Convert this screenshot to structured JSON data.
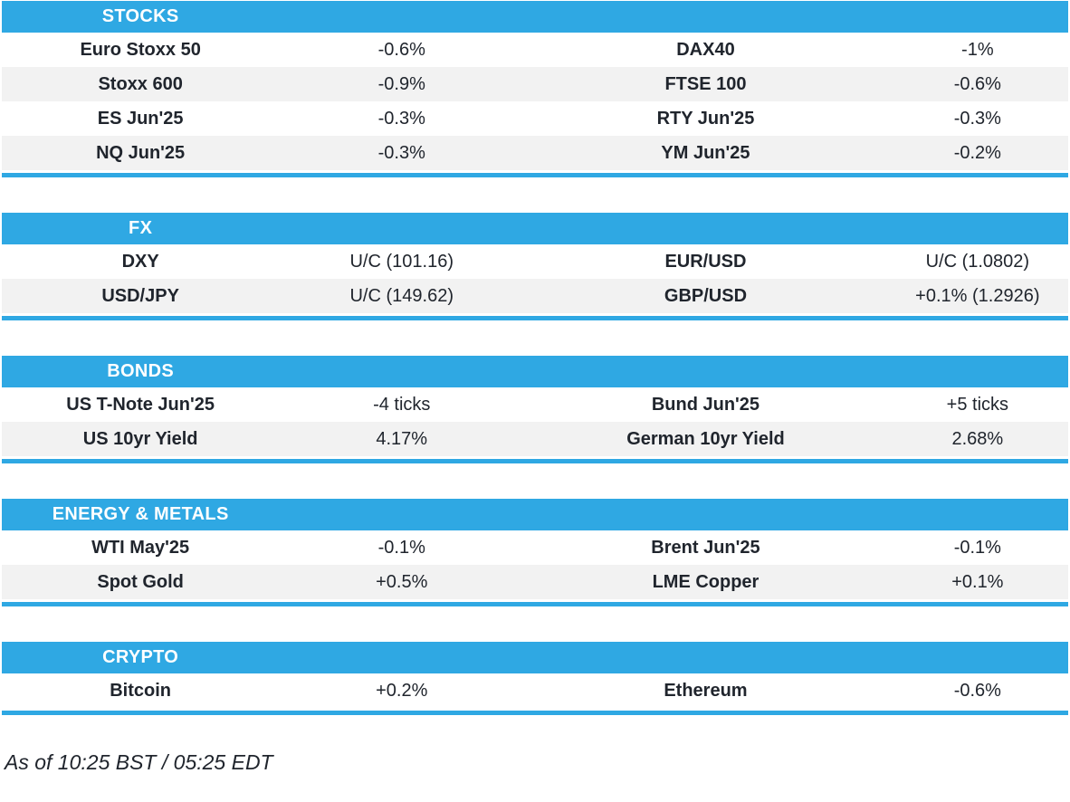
{
  "colors": {
    "accent": "#2fa8e3",
    "row_alt": "#f2f2f2",
    "text": "#20252d",
    "header_text": "#ffffff"
  },
  "chart_data": [
    {
      "type": "table",
      "title": "STOCKS",
      "rows": [
        [
          "Euro Stoxx 50",
          "-0.6%",
          "DAX40",
          "-1%"
        ],
        [
          "Stoxx 600",
          "-0.9%",
          "FTSE 100",
          "-0.6%"
        ],
        [
          "ES Jun'25",
          "-0.3%",
          "RTY Jun'25",
          "-0.3%"
        ],
        [
          "NQ Jun'25",
          "-0.3%",
          "YM Jun'25",
          "-0.2%"
        ]
      ]
    },
    {
      "type": "table",
      "title": "FX",
      "rows": [
        [
          "DXY",
          "U/C (101.16)",
          "EUR/USD",
          "U/C (1.0802)"
        ],
        [
          "USD/JPY",
          "U/C (149.62)",
          "GBP/USD",
          "+0.1% (1.2926)"
        ]
      ]
    },
    {
      "type": "table",
      "title": "BONDS",
      "rows": [
        [
          "US T-Note Jun'25",
          "-4 ticks",
          "Bund Jun'25",
          "+5 ticks"
        ],
        [
          "US 10yr Yield",
          "4.17%",
          "German 10yr Yield",
          "2.68%"
        ]
      ]
    },
    {
      "type": "table",
      "title": "ENERGY & METALS",
      "rows": [
        [
          "WTI May'25",
          "-0.1%",
          "Brent Jun'25",
          "-0.1%"
        ],
        [
          "Spot Gold",
          "+0.5%",
          "LME Copper",
          "+0.1%"
        ]
      ]
    },
    {
      "type": "table",
      "title": "CRYPTO",
      "rows": [
        [
          "Bitcoin",
          "+0.2%",
          "Ethereum",
          "-0.6%"
        ]
      ]
    }
  ],
  "footer": {
    "as_of": "As of 10:25 BST / 05:25 EDT"
  }
}
